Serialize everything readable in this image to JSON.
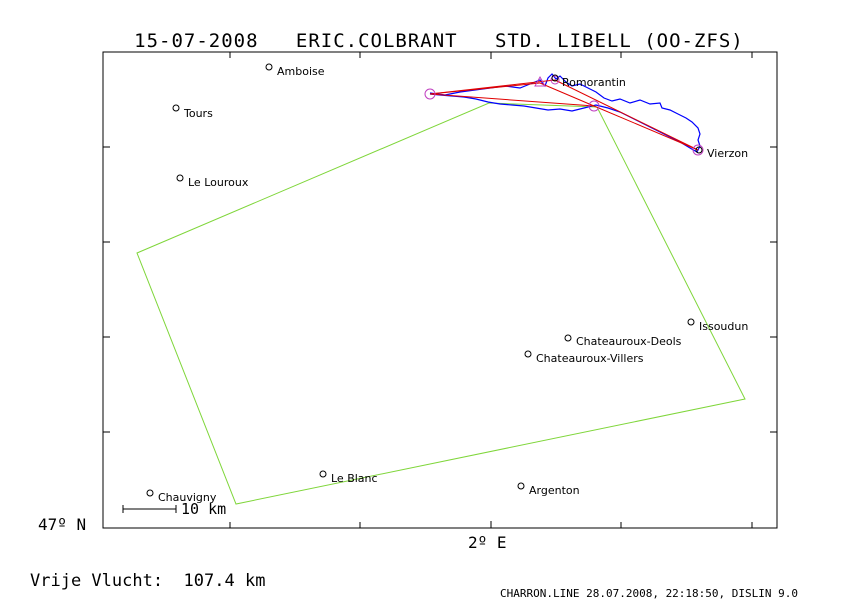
{
  "header": {
    "date": "15-07-2008",
    "pilot": "ERIC.COLBRANT",
    "glider": "STD. LIBELL (OO-ZFS)"
  },
  "axes": {
    "lat_label": "47º N",
    "lon_label": "2º E"
  },
  "scale_bar": {
    "label": "10 km"
  },
  "towns": [
    {
      "name": "Amboise"
    },
    {
      "name": "Tours"
    },
    {
      "name": "Le Louroux"
    },
    {
      "name": "Romorantin"
    },
    {
      "name": "Vierzon"
    },
    {
      "name": "Issoudun"
    },
    {
      "name": "Chateauroux-Deols"
    },
    {
      "name": "Chateauroux-Villers"
    },
    {
      "name": "Le Blanc"
    },
    {
      "name": "Chauvigny"
    },
    {
      "name": "Argenton"
    }
  ],
  "footer": {
    "flight_label": "Vrije Vlucht:",
    "flight_distance": "107.4 km",
    "credit": "CHARRON.LINE 28.07.2008, 22:18:50, DISLIN 9.0"
  },
  "colors": {
    "frame": "#000000",
    "sector": "#7fd63a",
    "track": "#0000ff",
    "task": "#e00000",
    "turnpoint": "#c040c0"
  }
}
